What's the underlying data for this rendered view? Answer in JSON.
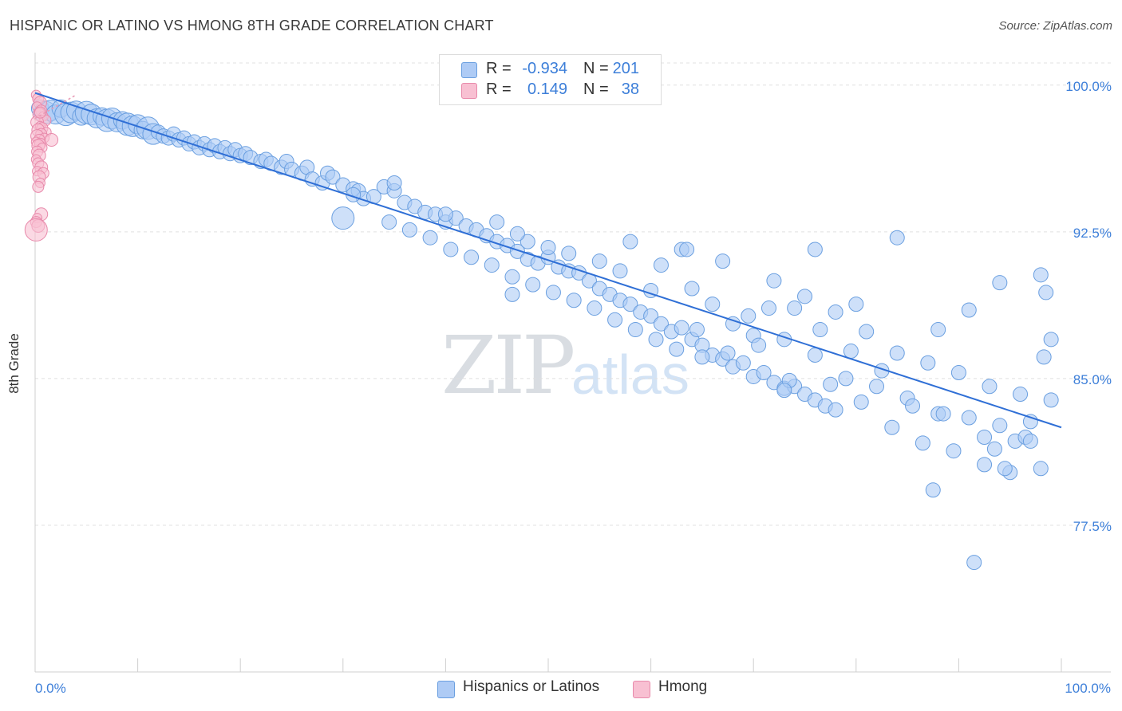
{
  "header": {
    "title": "HISPANIC OR LATINO VS HMONG 8TH GRADE CORRELATION CHART",
    "source": "Source: ZipAtlas.com"
  },
  "watermark": {
    "zip": "ZIP",
    "atlas": "atlas"
  },
  "legend_top": {
    "rows": [
      {
        "r_label": "R =",
        "r_value": "-0.934",
        "n_label": "N =",
        "n_value": "201"
      },
      {
        "r_label": "R =",
        "r_value": "0.149",
        "n_label": "N =",
        "n_value": "38"
      }
    ]
  },
  "legend_bottom": {
    "items": [
      "Hispanics or Latinos",
      "Hmong"
    ]
  },
  "colors": {
    "blue_fill": "#aecbf5",
    "blue_stroke": "#6a9fe0",
    "blue_line": "#2f6fd6",
    "pink_fill": "#f8c0d2",
    "pink_stroke": "#e88aab",
    "pink_line": "#e89ab5",
    "grid": "#e0e0e0",
    "tick_text": "#3d7fd9"
  },
  "chart_data": {
    "type": "scatter",
    "title": "HISPANIC OR LATINO VS HMONG 8TH GRADE CORRELATION CHART",
    "xlabel": "",
    "ylabel": "8th Grade",
    "xlim": [
      0,
      100
    ],
    "ylim": [
      70,
      101.5
    ],
    "x_tick_labels": [
      "0.0%",
      "100.0%"
    ],
    "y_ticks": [
      {
        "value": 100,
        "label": "100.0%"
      },
      {
        "value": 92.5,
        "label": "92.5%"
      },
      {
        "value": 85,
        "label": "85.0%"
      },
      {
        "value": 77.5,
        "label": "77.5%"
      }
    ],
    "grid": true,
    "legend_position": "top-center",
    "series": [
      {
        "name": "Hispanics or Latinos",
        "R": -0.934,
        "N": 201,
        "trend": {
          "x": [
            0,
            100
          ],
          "y": [
            99.6,
            82.5
          ]
        },
        "points": [
          [
            0.5,
            98.8
          ],
          [
            1,
            98.6
          ],
          [
            1.5,
            98.7
          ],
          [
            2,
            98.5
          ],
          [
            2.5,
            98.8
          ],
          [
            3,
            98.5
          ],
          [
            3.5,
            98.6
          ],
          [
            4,
            98.7
          ],
          [
            4.5,
            98.4
          ],
          [
            5,
            98.6
          ],
          [
            5.5,
            98.5
          ],
          [
            6,
            98.3
          ],
          [
            6.5,
            98.4
          ],
          [
            7,
            98.2
          ],
          [
            7.5,
            98.3
          ],
          [
            8,
            98.1
          ],
          [
            8.5,
            98.2
          ],
          [
            9,
            98.0
          ],
          [
            9.5,
            97.9
          ],
          [
            10,
            98.0
          ],
          [
            10.5,
            97.7
          ],
          [
            11,
            97.8
          ],
          [
            11.5,
            97.5
          ],
          [
            12,
            97.6
          ],
          [
            12.5,
            97.4
          ],
          [
            13,
            97.3
          ],
          [
            13.5,
            97.5
          ],
          [
            14,
            97.2
          ],
          [
            14.5,
            97.3
          ],
          [
            15,
            97.0
          ],
          [
            15.5,
            97.1
          ],
          [
            16,
            96.8
          ],
          [
            16.5,
            97.0
          ],
          [
            17,
            96.7
          ],
          [
            17.5,
            96.9
          ],
          [
            18,
            96.6
          ],
          [
            18.5,
            96.8
          ],
          [
            19,
            96.5
          ],
          [
            19.5,
            96.7
          ],
          [
            20,
            96.4
          ],
          [
            20.5,
            96.5
          ],
          [
            21,
            96.3
          ],
          [
            22,
            96.1
          ],
          [
            22.5,
            96.2
          ],
          [
            23,
            96.0
          ],
          [
            24,
            95.8
          ],
          [
            24.5,
            96.1
          ],
          [
            25,
            95.7
          ],
          [
            26,
            95.5
          ],
          [
            26.5,
            95.8
          ],
          [
            27,
            95.2
          ],
          [
            28,
            95.0
          ],
          [
            28.5,
            95.5
          ],
          [
            29,
            95.3
          ],
          [
            30,
            94.9
          ],
          [
            31,
            94.7
          ],
          [
            31.5,
            94.6
          ],
          [
            32,
            94.2
          ],
          [
            33,
            94.3
          ],
          [
            34,
            94.8
          ],
          [
            35,
            94.6
          ],
          [
            36,
            94.0
          ],
          [
            37,
            93.8
          ],
          [
            38,
            93.5
          ],
          [
            39,
            93.4
          ],
          [
            40,
            93.0
          ],
          [
            41,
            93.2
          ],
          [
            42,
            92.8
          ],
          [
            43,
            92.6
          ],
          [
            44,
            92.3
          ],
          [
            45,
            92.0
          ],
          [
            46,
            91.8
          ],
          [
            47,
            91.5
          ],
          [
            48,
            91.1
          ],
          [
            49,
            90.9
          ],
          [
            50,
            91.2
          ],
          [
            51,
            90.7
          ],
          [
            52,
            90.5
          ],
          [
            53,
            90.4
          ],
          [
            54,
            90.0
          ],
          [
            55,
            89.6
          ],
          [
            56,
            89.3
          ],
          [
            57,
            89.0
          ],
          [
            58,
            88.8
          ],
          [
            59,
            88.4
          ],
          [
            60,
            88.2
          ],
          [
            61,
            87.8
          ],
          [
            62,
            87.4
          ],
          [
            63,
            87.6
          ],
          [
            64,
            87.0
          ],
          [
            65,
            86.7
          ],
          [
            66,
            86.2
          ],
          [
            67,
            86.0
          ],
          [
            68,
            85.6
          ],
          [
            69,
            85.8
          ],
          [
            70,
            85.1
          ],
          [
            71,
            85.3
          ],
          [
            72,
            84.8
          ],
          [
            73,
            84.5
          ],
          [
            74,
            84.6
          ],
          [
            75,
            84.2
          ],
          [
            76,
            83.9
          ],
          [
            77,
            83.6
          ],
          [
            78,
            83.4
          ],
          [
            31,
            94.4
          ],
          [
            34.5,
            93.0
          ],
          [
            36.5,
            92.6
          ],
          [
            38.5,
            92.2
          ],
          [
            40.5,
            91.6
          ],
          [
            42.5,
            91.2
          ],
          [
            44.5,
            90.8
          ],
          [
            46.5,
            90.2
          ],
          [
            48.5,
            89.8
          ],
          [
            50.5,
            89.4
          ],
          [
            52.5,
            89.0
          ],
          [
            54.5,
            88.6
          ],
          [
            56.5,
            88.0
          ],
          [
            58.5,
            87.5
          ],
          [
            60.5,
            87.0
          ],
          [
            62.5,
            86.5
          ],
          [
            30,
            93.2
          ],
          [
            35,
            95.0
          ],
          [
            40,
            93.4
          ],
          [
            45,
            93.0
          ],
          [
            48,
            92.0
          ],
          [
            50,
            91.7
          ],
          [
            52,
            91.4
          ],
          [
            55,
            91.0
          ],
          [
            57,
            90.5
          ],
          [
            60,
            89.5
          ],
          [
            61,
            90.8
          ],
          [
            64,
            89.6
          ],
          [
            66,
            88.8
          ],
          [
            68,
            87.8
          ],
          [
            70,
            87.2
          ],
          [
            73,
            87.0
          ],
          [
            76,
            86.2
          ],
          [
            79,
            85.0
          ],
          [
            82,
            84.6
          ],
          [
            85,
            84.0
          ],
          [
            88,
            83.2
          ],
          [
            91,
            83.0
          ],
          [
            94,
            82.6
          ],
          [
            97,
            82.8
          ],
          [
            47,
            92.4
          ],
          [
            58,
            92.0
          ],
          [
            63,
            91.6
          ],
          [
            67,
            91.0
          ],
          [
            72,
            90.0
          ],
          [
            75,
            89.2
          ],
          [
            78,
            88.4
          ],
          [
            81,
            87.4
          ],
          [
            84,
            86.3
          ],
          [
            87,
            85.8
          ],
          [
            90,
            85.3
          ],
          [
            93,
            84.6
          ],
          [
            96,
            84.2
          ],
          [
            99,
            83.9
          ],
          [
            95.5,
            81.8
          ],
          [
            96.5,
            82.0
          ],
          [
            69.5,
            88.2
          ],
          [
            71.5,
            88.6
          ],
          [
            74,
            88.6
          ],
          [
            76.5,
            87.5
          ],
          [
            79.5,
            86.4
          ],
          [
            82.5,
            85.4
          ],
          [
            85.5,
            83.6
          ],
          [
            88.5,
            83.2
          ],
          [
            64.5,
            87.5
          ],
          [
            67.5,
            86.3
          ],
          [
            70.5,
            86.7
          ],
          [
            73.5,
            84.9
          ],
          [
            77.5,
            84.7
          ],
          [
            80.5,
            83.8
          ],
          [
            83.5,
            82.5
          ],
          [
            86.5,
            81.7
          ],
          [
            89.5,
            81.3
          ],
          [
            92.5,
            80.6
          ],
          [
            95,
            80.2
          ],
          [
            98,
            80.4
          ],
          [
            87.5,
            79.3
          ],
          [
            91.5,
            75.6
          ],
          [
            88,
            87.5
          ],
          [
            91,
            88.5
          ],
          [
            94,
            89.9
          ],
          [
            98,
            90.3
          ],
          [
            98.5,
            89.4
          ],
          [
            99,
            87.0
          ],
          [
            98.3,
            86.1
          ],
          [
            84,
            92.2
          ],
          [
            76,
            91.6
          ],
          [
            80,
            88.8
          ],
          [
            92.5,
            82.0
          ],
          [
            93.5,
            81.4
          ],
          [
            97,
            81.8
          ],
          [
            94.5,
            80.4
          ],
          [
            63.5,
            91.6
          ],
          [
            46.5,
            89.3
          ],
          [
            65,
            86.1
          ],
          [
            73,
            84.4
          ]
        ]
      },
      {
        "name": "Hmong",
        "R": 0.149,
        "N": 38,
        "trend": {
          "x": [
            0,
            4
          ],
          "y": [
            98.3,
            99.5
          ]
        },
        "points": [
          [
            0.1,
            99.5
          ],
          [
            0.3,
            99.3
          ],
          [
            0.5,
            99.1
          ],
          [
            0.2,
            98.9
          ],
          [
            0.6,
            98.7
          ],
          [
            0.4,
            98.5
          ],
          [
            0.8,
            98.4
          ],
          [
            1.0,
            98.2
          ],
          [
            0.2,
            98.1
          ],
          [
            0.5,
            97.9
          ],
          [
            0.7,
            97.8
          ],
          [
            0.3,
            97.7
          ],
          [
            1.1,
            97.6
          ],
          [
            0.6,
            97.5
          ],
          [
            0.2,
            97.4
          ],
          [
            0.9,
            97.3
          ],
          [
            0.4,
            97.2
          ],
          [
            1.6,
            97.2
          ],
          [
            0.1,
            97.1
          ],
          [
            0.5,
            97.0
          ],
          [
            0.3,
            96.9
          ],
          [
            0.7,
            96.8
          ],
          [
            0.2,
            96.6
          ],
          [
            0.4,
            96.4
          ],
          [
            0.1,
            96.2
          ],
          [
            0.3,
            96.0
          ],
          [
            0.6,
            95.8
          ],
          [
            0.2,
            95.6
          ],
          [
            0.8,
            95.5
          ],
          [
            0.4,
            95.3
          ],
          [
            0.5,
            95.0
          ],
          [
            0.3,
            94.8
          ],
          [
            0.6,
            93.4
          ],
          [
            0.2,
            93.2
          ],
          [
            0.1,
            93.0
          ],
          [
            0.3,
            92.8
          ],
          [
            0.1,
            92.6
          ],
          [
            0.5,
            98.6
          ]
        ]
      }
    ]
  }
}
